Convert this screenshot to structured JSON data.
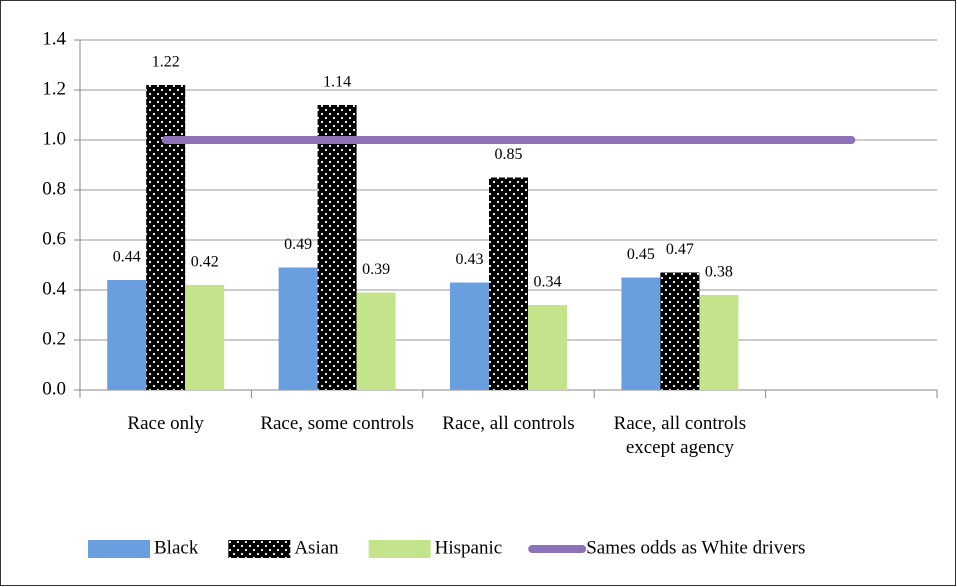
{
  "chart_data": {
    "type": "bar",
    "categories": [
      "Race only",
      "Race, some controls",
      "Race, all controls",
      "Race, all controls except agency",
      null
    ],
    "series": [
      {
        "name": "Black",
        "color": "#6a9fdf",
        "values": [
          0.44,
          0.49,
          0.43,
          0.45,
          null
        ]
      },
      {
        "name": "Asian",
        "color": "#000000",
        "pattern": "dots",
        "values": [
          1.22,
          1.14,
          0.85,
          0.47,
          null
        ]
      },
      {
        "name": "Hispanic",
        "color": "#c4e48c",
        "values": [
          0.42,
          0.39,
          0.34,
          0.38,
          null
        ]
      },
      {
        "name": "Sames odds as White drivers",
        "type": "line",
        "color": "#8e72b8",
        "values": [
          1.0,
          1.0,
          1.0,
          1.0,
          1.0
        ]
      }
    ],
    "ylim": [
      0,
      1.4
    ],
    "yticks": [
      {
        "value": 0,
        "label": "0.0"
      },
      0.2,
      0.4,
      0.6,
      0.8,
      {
        "value": 1,
        "label": "1.0"
      },
      1.2,
      1.4
    ],
    "grid": true,
    "legend": "bottom"
  }
}
